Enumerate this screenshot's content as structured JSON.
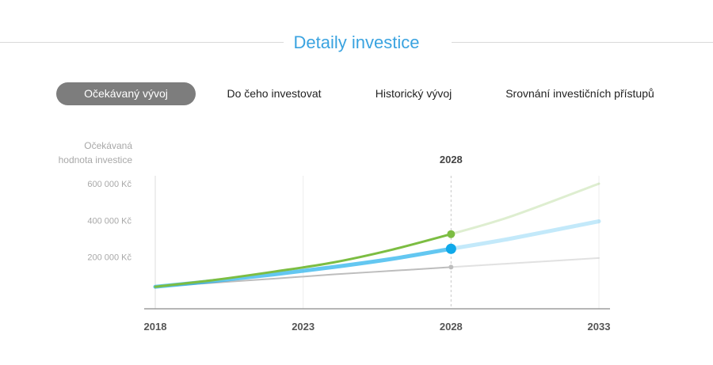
{
  "section": {
    "title": "Detaily investice"
  },
  "tabs": [
    {
      "label": "Očekávaný vývoj",
      "active": true
    },
    {
      "label": "Do čeho investovat",
      "active": false
    },
    {
      "label": "Historický vývoj",
      "active": false
    },
    {
      "label": "Srovnání investičních přístupů",
      "active": false
    }
  ],
  "colors": {
    "title": "#3aa3e0",
    "active_tab_bg": "#7d7d7d",
    "series_green": "#7cbd42",
    "series_blue": "#0fa9ea",
    "series_gray": "#bdbdbd"
  },
  "chart_data": {
    "type": "line",
    "ylabel": "Očekávaná hodnota investice",
    "ylabel_lines": [
      "Očekávaná",
      "hodnota investice"
    ],
    "y_ticks": [
      "200 000 Kč",
      "400 000 Kč",
      "600 000 Kč"
    ],
    "y_tick_values": [
      200000,
      400000,
      600000
    ],
    "x_ticks": [
      "2018",
      "2023",
      "2028",
      "2033"
    ],
    "x_tick_values": [
      2018,
      2023,
      2028,
      2033
    ],
    "xlim": [
      2018,
      2033
    ],
    "ylim": [
      0,
      600000
    ],
    "highlight_year": "2028",
    "highlight_x": 2028,
    "grid": "vertical",
    "series": [
      {
        "color": "#7cbd42",
        "x": [
          2018,
          2020,
          2022,
          2024,
          2026,
          2028,
          2030,
          2033
        ],
        "values": [
          38000,
          75000,
          120000,
          170000,
          240000,
          325000,
          420000,
          600000
        ]
      },
      {
        "color": "#0fa9ea",
        "x": [
          2018,
          2020,
          2022,
          2024,
          2026,
          2028,
          2030,
          2033
        ],
        "values": [
          38000,
          70000,
          105000,
          145000,
          190000,
          245000,
          300000,
          395000
        ]
      },
      {
        "color": "#bdbdbd",
        "x": [
          2018,
          2020,
          2022,
          2024,
          2026,
          2028,
          2030,
          2033
        ],
        "values": [
          38000,
          60000,
          82000,
          105000,
          125000,
          145000,
          165000,
          195000
        ]
      }
    ]
  }
}
